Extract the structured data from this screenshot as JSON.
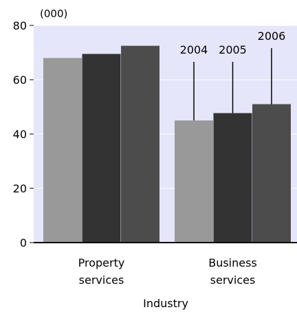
{
  "chart_data": {
    "type": "bar",
    "unit_label": "(000)",
    "xlabel": "Industry",
    "ylabel": "",
    "ylim": [
      0,
      80
    ],
    "yticks": [
      0,
      20,
      40,
      60,
      80
    ],
    "categories": [
      [
        "Property",
        "services"
      ],
      [
        "Business",
        "services"
      ]
    ],
    "series": [
      {
        "name": "2004",
        "values": [
          68,
          45
        ],
        "color": "#999999"
      },
      {
        "name": "2005",
        "values": [
          69.5,
          47.7
        ],
        "color": "#333333"
      },
      {
        "name": "2006",
        "values": [
          72.5,
          51
        ],
        "color": "#4c4c4c"
      }
    ],
    "legend_placement": "labels with leader lines above the Business services bars",
    "plot_background": "#e6e6fa",
    "grid": "horizontal, white"
  }
}
